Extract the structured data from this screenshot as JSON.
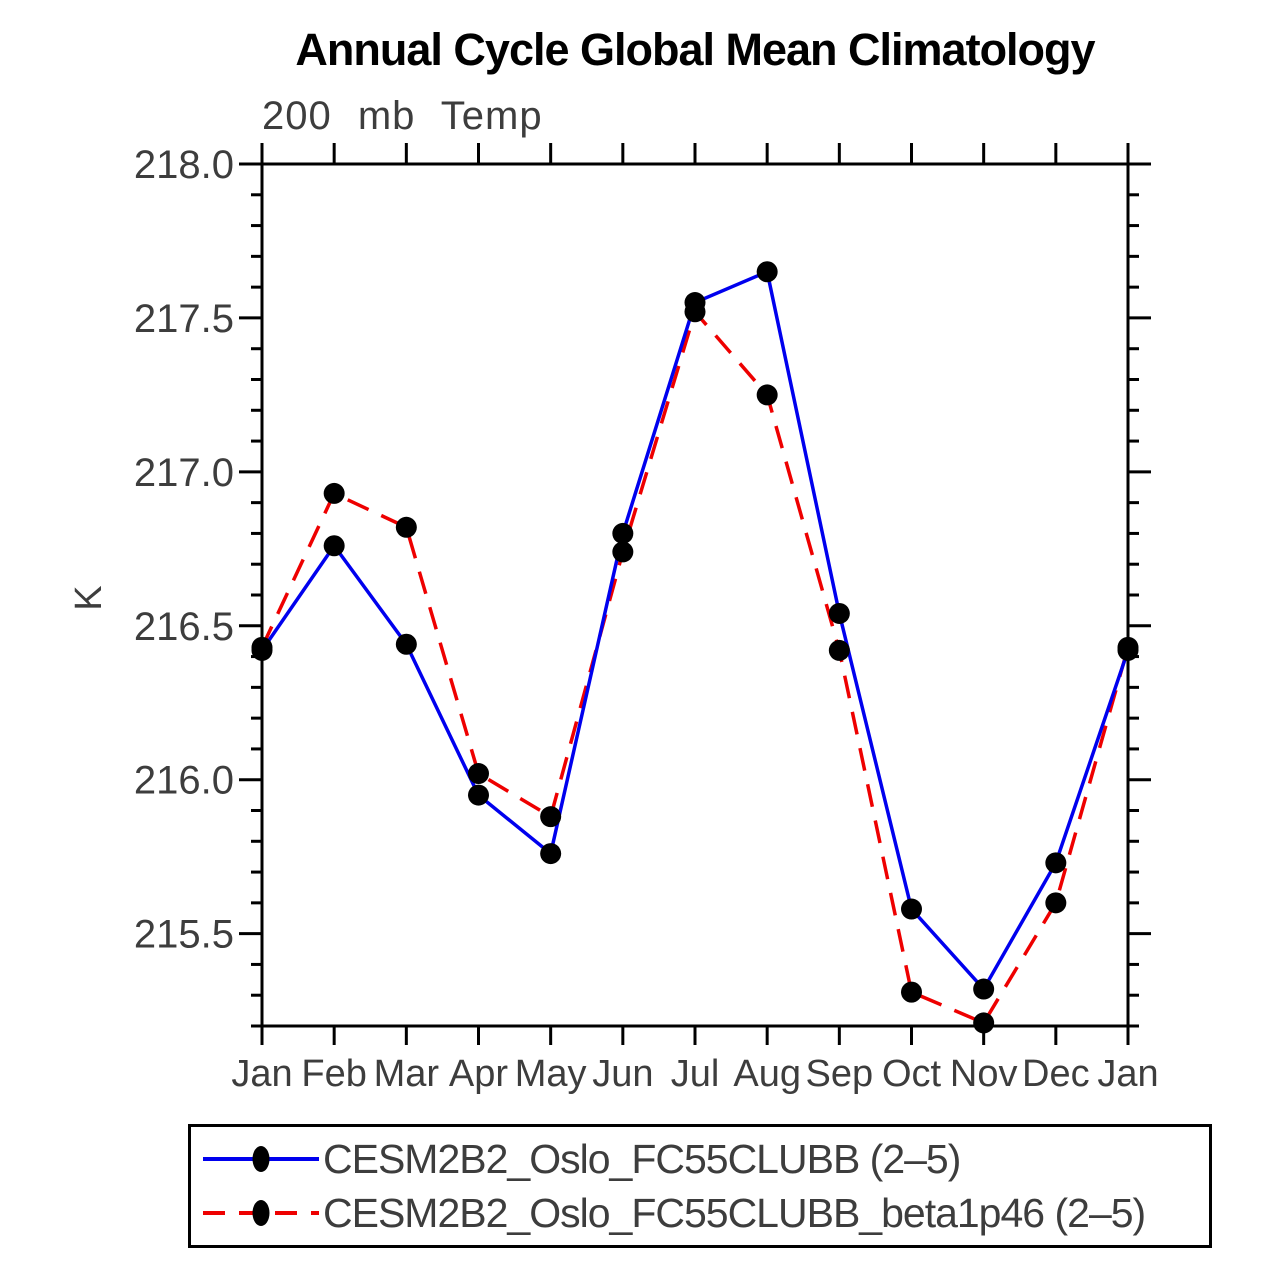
{
  "page": {
    "title": "Annual Cycle Global Mean Climatology",
    "subtitle": "200 mb Temp",
    "ylabel": "K"
  },
  "chart_data": {
    "type": "line",
    "title": "Annual Cycle Global Mean Climatology",
    "subtitle": "200 mb Temp",
    "xlabel": "",
    "ylabel": "K",
    "categories": [
      "Jan",
      "Feb",
      "Mar",
      "Apr",
      "May",
      "Jun",
      "Jul",
      "Aug",
      "Sep",
      "Oct",
      "Nov",
      "Dec",
      "Jan"
    ],
    "series": [
      {
        "name": "CESM2B2_Oslo_FC55CLUBB (2–5)",
        "color": "#0000ee",
        "line_style": "solid",
        "marker": "black-dot",
        "values": [
          216.42,
          216.76,
          216.44,
          215.95,
          215.76,
          216.8,
          217.55,
          217.65,
          216.54,
          215.58,
          215.32,
          215.73,
          216.42
        ]
      },
      {
        "name": "CESM2B2_Oslo_FC55CLUBB_beta1p46 (2–5)",
        "color": "#ee0000",
        "line_style": "dashed",
        "marker": "black-dot",
        "values": [
          216.43,
          216.93,
          216.82,
          216.02,
          215.88,
          216.74,
          217.52,
          217.25,
          216.42,
          215.31,
          215.21,
          215.6,
          216.43
        ]
      }
    ],
    "ylim": [
      215.2,
      218.0
    ],
    "ytick_major_interval": 0.5,
    "ytick_minor_interval": 0.1,
    "ytick_labels": [
      "215.5",
      "216.0",
      "216.5",
      "217.0",
      "217.5",
      "218.0"
    ],
    "grid": false,
    "legend_position": "bottom",
    "axis_color": "#000000",
    "marker_color": "#000000",
    "text_color": "#3d3d3d"
  }
}
